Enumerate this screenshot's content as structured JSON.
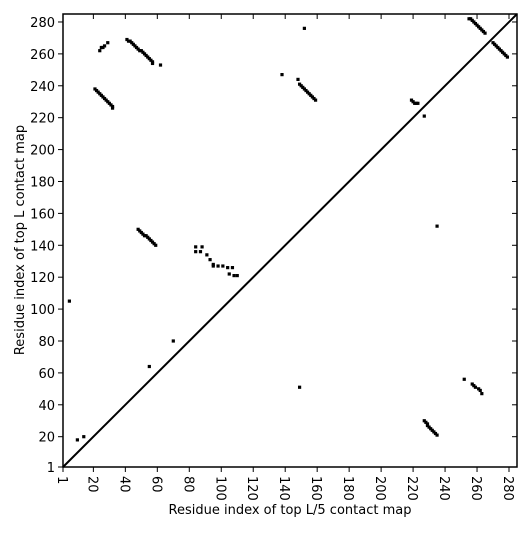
{
  "chart_data": {
    "type": "scatter",
    "xlabel": "Residue index of top L/5 contact map",
    "ylabel": "Residue index of top L contact map",
    "color": "#000000",
    "diagonal": true,
    "xlim": [
      1,
      285
    ],
    "ylim": [
      1,
      285
    ],
    "xticks": [
      1,
      20,
      40,
      60,
      80,
      100,
      120,
      140,
      160,
      180,
      200,
      220,
      240,
      260,
      280
    ],
    "yticks": [
      1,
      20,
      40,
      60,
      80,
      100,
      120,
      140,
      160,
      180,
      200,
      220,
      240,
      260,
      280
    ],
    "x": [
      21,
      22,
      23,
      24,
      25,
      26,
      27,
      28,
      29,
      30,
      31,
      32,
      32,
      24,
      25,
      26,
      27,
      29,
      41,
      42,
      43,
      44,
      45,
      46,
      47,
      48,
      49,
      50,
      51,
      52,
      53,
      54,
      55,
      56,
      57,
      57,
      62,
      48,
      49,
      50,
      51,
      52,
      53,
      54,
      55,
      56,
      57,
      58,
      59,
      84,
      84,
      87,
      88,
      91,
      93,
      95,
      95,
      98,
      101,
      104,
      105,
      107,
      108,
      110,
      5,
      70,
      55,
      10,
      14,
      138,
      152,
      148,
      149,
      150,
      151,
      152,
      153,
      154,
      155,
      156,
      157,
      158,
      159,
      219,
      220,
      221,
      222,
      223,
      227,
      235,
      255,
      256,
      257,
      258,
      259,
      260,
      261,
      262,
      263,
      264,
      265,
      270,
      271,
      272,
      273,
      274,
      275,
      276,
      277,
      278,
      279,
      149,
      252,
      257,
      258,
      259,
      261,
      262,
      263,
      227,
      228,
      229,
      229,
      230,
      231,
      232,
      233,
      234,
      235
    ],
    "values": [
      238,
      237,
      236,
      235,
      234,
      233,
      232,
      231,
      230,
      229,
      228,
      227,
      226,
      262,
      264,
      264,
      265,
      267,
      269,
      268,
      268,
      267,
      266,
      265,
      264,
      263,
      262,
      262,
      261,
      260,
      259,
      258,
      257,
      256,
      255,
      254,
      253,
      150,
      149,
      148,
      147,
      146,
      146,
      145,
      144,
      143,
      142,
      141,
      140,
      139,
      136,
      136,
      139,
      134,
      131,
      128,
      127,
      127,
      127,
      126,
      122,
      126,
      121,
      121,
      105,
      80,
      64,
      18,
      20,
      247,
      276,
      244,
      241,
      240,
      239,
      238,
      237,
      236,
      235,
      234,
      233,
      232,
      231,
      231,
      230,
      229,
      229,
      229,
      221,
      152,
      282,
      282,
      281,
      280,
      279,
      278,
      277,
      276,
      275,
      274,
      273,
      267,
      266,
      265,
      264,
      263,
      262,
      261,
      260,
      259,
      258,
      51,
      56,
      53,
      52,
      51,
      50,
      49,
      47,
      30,
      29,
      28,
      27,
      26,
      25,
      24,
      23,
      22,
      21
    ]
  }
}
